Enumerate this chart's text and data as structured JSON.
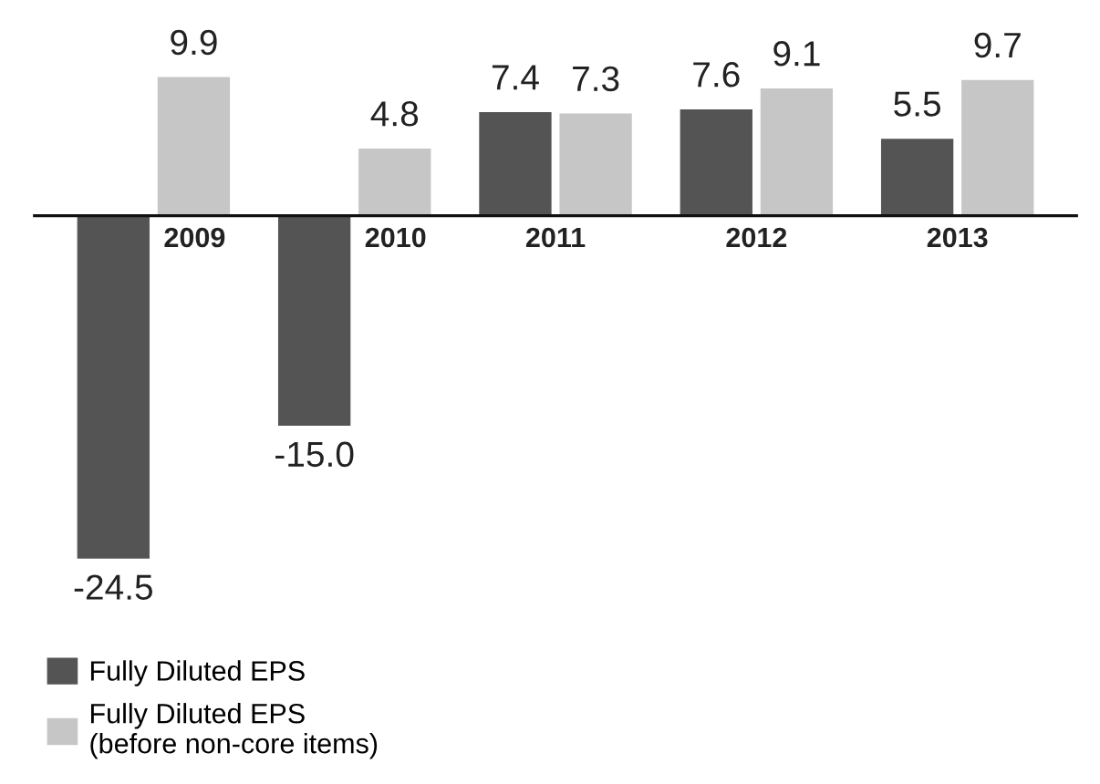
{
  "chart_data": {
    "type": "bar",
    "categories": [
      "2009",
      "2010",
      "2011",
      "2012",
      "2013"
    ],
    "series": [
      {
        "name": "Fully Diluted EPS",
        "color": "#545454",
        "values": [
          -24.5,
          -15.0,
          7.4,
          7.6,
          5.5
        ],
        "value_labels": [
          "-24.5",
          "-15.0",
          "7.4",
          "7.6",
          "5.5"
        ]
      },
      {
        "name": "Fully Diluted EPS\n(before non-core items)",
        "color": "#c6c6c6",
        "values": [
          9.9,
          4.8,
          7.3,
          9.1,
          9.7
        ],
        "value_labels": [
          "9.9",
          "4.8",
          "7.3",
          "9.1",
          "9.7"
        ]
      }
    ],
    "legend": "bottom left"
  }
}
